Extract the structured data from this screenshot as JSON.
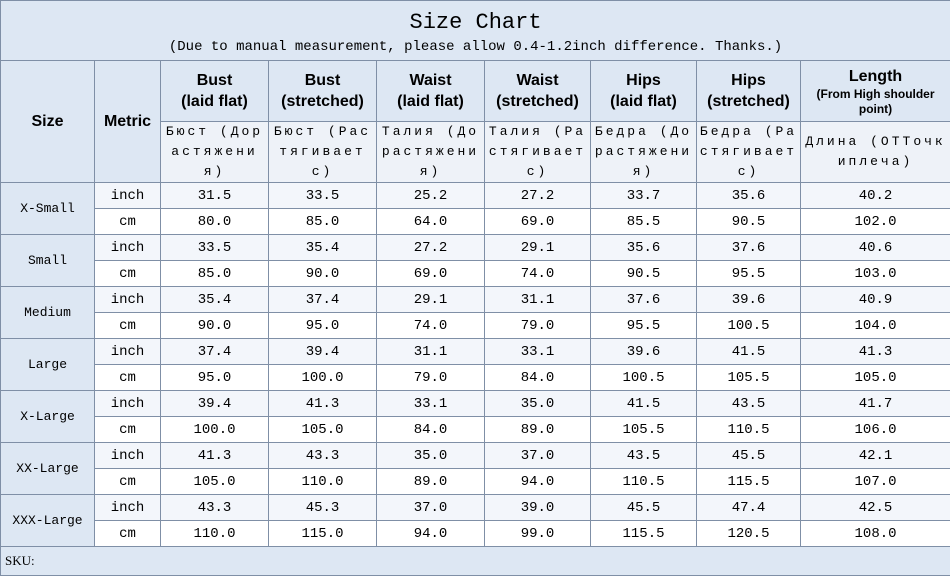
{
  "title": "Size Chart",
  "subtitle": "(Due to manual measurement, please allow 0.4-1.2inch difference. Thanks.)",
  "table": {
    "header": [
      {
        "title": "Size"
      },
      {
        "title": "Metric"
      },
      {
        "title": "Bust",
        "detail": "(laid flat)"
      },
      {
        "title": "Bust",
        "detail": "(stretched)"
      },
      {
        "title": "Waist",
        "detail": "(laid flat)"
      },
      {
        "title": "Waist",
        "detail": "(stretched)"
      },
      {
        "title": "Hips",
        "detail": "(laid flat)"
      },
      {
        "title": "Hips",
        "detail": "(stretched)"
      },
      {
        "title": "Length",
        "detail": "(From High shoulder point)"
      }
    ],
    "subheader": [
      "Бюст (Дорастяжения)",
      "Бюст (Растягиваетс)",
      "Талия (Дорастяжения)",
      "Талия (Растягиваетс)",
      "Бедра (Дорастяжения)",
      "Бедра (Растягиваетс)",
      "Длина (ОТТочкиплеча)"
    ],
    "rows": [
      {
        "size": "X-Small",
        "lines": [
          {
            "metric": "inch",
            "values": [
              "31.5",
              "33.5",
              "25.2",
              "27.2",
              "33.7",
              "35.6",
              "40.2"
            ]
          },
          {
            "metric": "cm",
            "values": [
              "80.0",
              "85.0",
              "64.0",
              "69.0",
              "85.5",
              "90.5",
              "102.0"
            ]
          }
        ]
      },
      {
        "size": "Small",
        "lines": [
          {
            "metric": "inch",
            "values": [
              "33.5",
              "35.4",
              "27.2",
              "29.1",
              "35.6",
              "37.6",
              "40.6"
            ]
          },
          {
            "metric": "cm",
            "values": [
              "85.0",
              "90.0",
              "69.0",
              "74.0",
              "90.5",
              "95.5",
              "103.0"
            ]
          }
        ]
      },
      {
        "size": "Medium",
        "lines": [
          {
            "metric": "inch",
            "values": [
              "35.4",
              "37.4",
              "29.1",
              "31.1",
              "37.6",
              "39.6",
              "40.9"
            ]
          },
          {
            "metric": "cm",
            "values": [
              "90.0",
              "95.0",
              "74.0",
              "79.0",
              "95.5",
              "100.5",
              "104.0"
            ]
          }
        ]
      },
      {
        "size": "Large",
        "lines": [
          {
            "metric": "inch",
            "values": [
              "37.4",
              "39.4",
              "31.1",
              "33.1",
              "39.6",
              "41.5",
              "41.3"
            ]
          },
          {
            "metric": "cm",
            "values": [
              "95.0",
              "100.0",
              "79.0",
              "84.0",
              "100.5",
              "105.5",
              "105.0"
            ]
          }
        ]
      },
      {
        "size": "X-Large",
        "lines": [
          {
            "metric": "inch",
            "values": [
              "39.4",
              "41.3",
              "33.1",
              "35.0",
              "41.5",
              "43.5",
              "41.7"
            ]
          },
          {
            "metric": "cm",
            "values": [
              "100.0",
              "105.0",
              "84.0",
              "89.0",
              "105.5",
              "110.5",
              "106.0"
            ]
          }
        ]
      },
      {
        "size": "XX-Large",
        "lines": [
          {
            "metric": "inch",
            "values": [
              "41.3",
              "43.3",
              "35.0",
              "37.0",
              "43.5",
              "45.5",
              "42.1"
            ]
          },
          {
            "metric": "cm",
            "values": [
              "105.0",
              "110.0",
              "89.0",
              "94.0",
              "110.5",
              "115.5",
              "107.0"
            ]
          }
        ]
      },
      {
        "size": "XXX-Large",
        "lines": [
          {
            "metric": "inch",
            "values": [
              "43.3",
              "45.3",
              "37.0",
              "39.0",
              "45.5",
              "47.4",
              "42.5"
            ]
          },
          {
            "metric": "cm",
            "values": [
              "110.0",
              "115.0",
              "94.0",
              "99.0",
              "115.5",
              "120.5",
              "108.0"
            ]
          }
        ]
      }
    ]
  },
  "footer": "SKU:"
}
